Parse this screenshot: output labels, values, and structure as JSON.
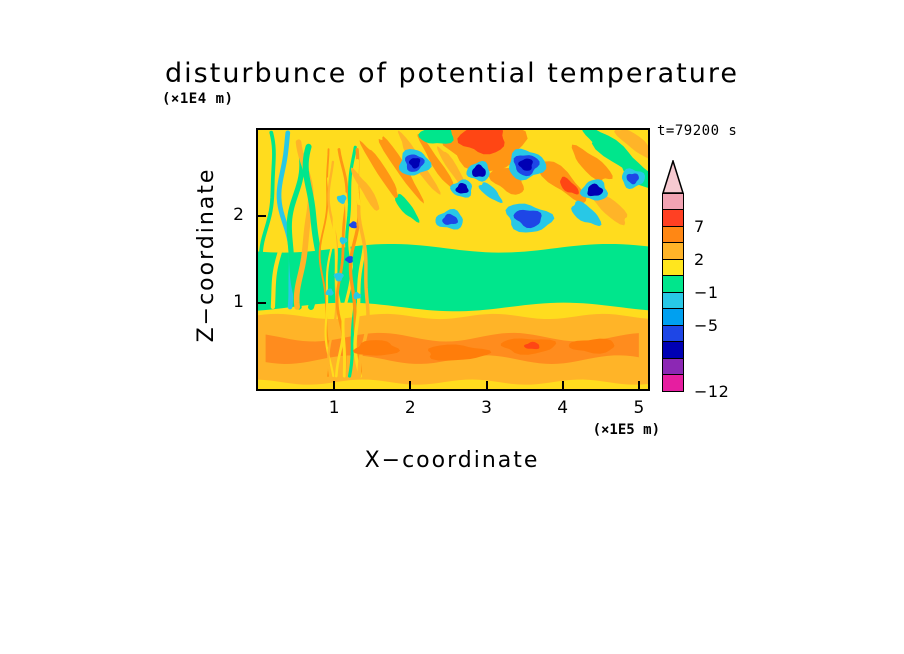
{
  "page": {
    "background": "#FFFFFF"
  },
  "chart_data": {
    "type": "heatmap",
    "subtype": "filled-contour",
    "title": "disturbunce of potential temperature",
    "xlabel": "X−coordinate",
    "ylabel": "Z−coordinate",
    "x_unit": "(×1E5 m)",
    "z_unit": "(×1E4 m)",
    "time_label": "t=79200 s",
    "xlim": [
      0,
      5.12
    ],
    "zlim": [
      0,
      3
    ],
    "grid": false,
    "x_ticks": [
      "1",
      "2",
      "3",
      "4",
      "5"
    ],
    "x_tick_values": [
      1,
      2,
      3,
      4,
      5
    ],
    "z_ticks": [
      "1",
      "2"
    ],
    "z_tick_values": [
      1,
      2
    ],
    "colorbar": {
      "orientation": "vertical",
      "position": "right",
      "arrow_color": "#F6C9D0",
      "segment_colors": [
        "#F2A3B3",
        "#FF4023",
        "#FF8714",
        "#FFB428",
        "#FFE61E",
        "#00E68C",
        "#28C8E6",
        "#00A0F0",
        "#1E46E6",
        "#0000B4",
        "#8C28B4",
        "#E61EA0"
      ],
      "tick_labels": [
        "7",
        "2",
        "−1",
        "−5",
        "−12"
      ],
      "tick_after_segment": [
        2,
        4,
        6,
        8,
        12
      ]
    },
    "field": {
      "description": "Vertical cross-section of potential temperature disturbance: near-zero (green) band at mid levels, warm (amber/orange) layer near the surface, turbulent wave-breaking column of fine vertical filaments near x=1, and a busy upper region with warm (orange/red) diagonal phase lines and cold (cyan/blue) cores.",
      "base": "#FFDC1E",
      "bands": [
        {
          "z0": 0.08,
          "z1": 0.84,
          "x0": 0.0,
          "x1": 5.12,
          "color": "#FFB428",
          "wave": 0.03,
          "f": 2.2,
          "p": 0.5
        },
        {
          "z0": 0.34,
          "z1": 0.6,
          "x0": 0.1,
          "x1": 5.0,
          "color": "#FF8C1E",
          "wave": 0.05,
          "f": 1.8,
          "p": 2.1
        },
        {
          "z0": 0.95,
          "z1": 1.63,
          "x0": 0.0,
          "x1": 5.12,
          "color": "#00E68C",
          "wave": 0.05,
          "f": 1.1,
          "p": 4.0
        }
      ],
      "stripe_groups": [
        {
          "x0": 0.08,
          "x1": 0.78,
          "z0": 0.95,
          "z1": 2.97,
          "count": 6,
          "width": 0.07,
          "sway": 0.08,
          "colors": [
            "#00E68C",
            "#FFDC1E",
            "#28C8E6",
            "#00E68C",
            "#FFB428",
            "#00E68C"
          ]
        },
        {
          "x0": 0.85,
          "x1": 1.42,
          "z0": 0.15,
          "z1": 2.8,
          "count": 10,
          "width": 0.035,
          "sway": 0.05,
          "colors": [
            "#FF9614",
            "#FFDC1E",
            "#FFB428",
            "#FFDC1E",
            "#FF9614",
            "#FFDC1E",
            "#00E68C",
            "#FF9614",
            "#FFDC1E",
            "#FFB428"
          ]
        }
      ],
      "blobs": [
        {
          "x": 1.62,
          "z": 2.52,
          "rx": 0.45,
          "rz": 0.055,
          "rot": 57,
          "color": "#FF9614"
        },
        {
          "x": 1.86,
          "z": 2.58,
          "rx": 0.5,
          "rz": 0.06,
          "rot": 57,
          "color": "#FF9614"
        },
        {
          "x": 2.1,
          "z": 2.62,
          "rx": 0.48,
          "rz": 0.055,
          "rot": 57,
          "color": "#FFB428"
        },
        {
          "x": 2.34,
          "z": 2.62,
          "rx": 0.42,
          "rz": 0.05,
          "rot": 57,
          "color": "#FF9614"
        },
        {
          "x": 1.42,
          "z": 2.3,
          "rx": 0.33,
          "rz": 0.05,
          "rot": 57,
          "color": "#FFB428"
        },
        {
          "x": 2.56,
          "z": 2.55,
          "rx": 0.35,
          "rz": 0.05,
          "rot": 57,
          "color": "#FFB428"
        },
        {
          "x": 1.95,
          "z": 2.1,
          "rx": 0.22,
          "rz": 0.06,
          "rot": 50,
          "color": "#00E68C"
        },
        {
          "x": 2.98,
          "z": 2.82,
          "rx": 0.52,
          "rz": 0.28,
          "rot": 0,
          "color": "#FF9614"
        },
        {
          "x": 2.96,
          "z": 2.9,
          "rx": 0.3,
          "rz": 0.17,
          "rot": 0,
          "color": "#FF4614"
        },
        {
          "x": 3.28,
          "z": 2.42,
          "rx": 0.24,
          "rz": 0.13,
          "rot": 30,
          "color": "#FF9614"
        },
        {
          "x": 3.98,
          "z": 2.42,
          "rx": 0.4,
          "rz": 0.11,
          "rot": 40,
          "color": "#FF9614"
        },
        {
          "x": 4.08,
          "z": 2.35,
          "rx": 0.15,
          "rz": 0.06,
          "rot": 40,
          "color": "#FF4614"
        },
        {
          "x": 4.38,
          "z": 2.6,
          "rx": 0.32,
          "rz": 0.1,
          "rot": 40,
          "color": "#FF9614"
        },
        {
          "x": 4.62,
          "z": 2.1,
          "rx": 0.3,
          "rz": 0.09,
          "rot": 40,
          "color": "#FFB428"
        },
        {
          "x": 4.95,
          "z": 2.85,
          "rx": 0.3,
          "rz": 0.08,
          "rot": 38,
          "color": "#FFB428"
        },
        {
          "x": 4.72,
          "z": 2.72,
          "rx": 0.45,
          "rz": 0.11,
          "rot": 38,
          "color": "#00E68C"
        },
        {
          "x": 5.0,
          "z": 2.5,
          "rx": 0.38,
          "rz": 0.1,
          "rot": 38,
          "color": "#00E68C"
        },
        {
          "x": 4.5,
          "z": 2.88,
          "rx": 0.3,
          "rz": 0.09,
          "rot": 38,
          "color": "#00E68C"
        },
        {
          "x": 2.35,
          "z": 2.95,
          "rx": 0.22,
          "rz": 0.12,
          "rot": 0,
          "color": "#00E68C"
        },
        {
          "x": 2.05,
          "z": 2.62,
          "rx": 0.2,
          "rz": 0.15,
          "rot": 0,
          "color": "#28C8E6"
        },
        {
          "x": 2.05,
          "z": 2.62,
          "rx": 0.12,
          "rz": 0.1,
          "rot": 0,
          "color": "#1E46E6"
        },
        {
          "x": 2.06,
          "z": 2.62,
          "rx": 0.07,
          "rz": 0.06,
          "rot": 0,
          "color": "#0000B4"
        },
        {
          "x": 2.9,
          "z": 2.52,
          "rx": 0.15,
          "rz": 0.11,
          "rot": 0,
          "color": "#28C8E6"
        },
        {
          "x": 2.9,
          "z": 2.52,
          "rx": 0.09,
          "rz": 0.07,
          "rot": 0,
          "color": "#0000B4"
        },
        {
          "x": 3.52,
          "z": 2.6,
          "rx": 0.24,
          "rz": 0.17,
          "rot": 0,
          "color": "#28C8E6"
        },
        {
          "x": 3.52,
          "z": 2.6,
          "rx": 0.16,
          "rz": 0.12,
          "rot": 0,
          "color": "#1E46E6"
        },
        {
          "x": 3.52,
          "z": 2.6,
          "rx": 0.09,
          "rz": 0.07,
          "rot": 0,
          "color": "#0000B4"
        },
        {
          "x": 4.42,
          "z": 2.3,
          "rx": 0.17,
          "rz": 0.12,
          "rot": 0,
          "color": "#28C8E6"
        },
        {
          "x": 4.42,
          "z": 2.3,
          "rx": 0.1,
          "rz": 0.07,
          "rot": 0,
          "color": "#0000B4"
        },
        {
          "x": 4.92,
          "z": 2.44,
          "rx": 0.15,
          "rz": 0.11,
          "rot": 0,
          "color": "#28C8E6"
        },
        {
          "x": 4.92,
          "z": 2.44,
          "rx": 0.08,
          "rz": 0.06,
          "rot": 0,
          "color": "#1E46E6"
        },
        {
          "x": 2.68,
          "z": 2.32,
          "rx": 0.14,
          "rz": 0.1,
          "rot": 0,
          "color": "#28C8E6"
        },
        {
          "x": 2.68,
          "z": 2.32,
          "rx": 0.08,
          "rz": 0.06,
          "rot": 0,
          "color": "#0000B4"
        },
        {
          "x": 3.05,
          "z": 2.28,
          "rx": 0.18,
          "rz": 0.06,
          "rot": 40,
          "color": "#28C8E6"
        },
        {
          "x": 3.55,
          "z": 1.98,
          "rx": 0.3,
          "rz": 0.16,
          "rot": 10,
          "color": "#28C8E6"
        },
        {
          "x": 3.55,
          "z": 1.98,
          "rx": 0.18,
          "rz": 0.1,
          "rot": 10,
          "color": "#1E46E6"
        },
        {
          "x": 2.52,
          "z": 1.96,
          "rx": 0.18,
          "rz": 0.11,
          "rot": 0,
          "color": "#28C8E6"
        },
        {
          "x": 2.52,
          "z": 1.96,
          "rx": 0.1,
          "rz": 0.06,
          "rot": 0,
          "color": "#1E46E6"
        },
        {
          "x": 4.3,
          "z": 2.03,
          "rx": 0.22,
          "rz": 0.09,
          "rot": 35,
          "color": "#28C8E6"
        },
        {
          "x": 1.06,
          "z": 1.3,
          "rx": 0.06,
          "rz": 0.05,
          "rot": 0,
          "color": "#28C8E6"
        },
        {
          "x": 1.2,
          "z": 1.5,
          "rx": 0.05,
          "rz": 0.04,
          "rot": 0,
          "color": "#1E46E6"
        },
        {
          "x": 0.94,
          "z": 1.12,
          "rx": 0.05,
          "rz": 0.04,
          "rot": 0,
          "color": "#28C8E6"
        },
        {
          "x": 1.3,
          "z": 1.08,
          "rx": 0.05,
          "rz": 0.04,
          "rot": 0,
          "color": "#28C8E6"
        },
        {
          "x": 1.12,
          "z": 1.72,
          "rx": 0.05,
          "rz": 0.04,
          "rot": 0,
          "color": "#28C8E6"
        },
        {
          "x": 1.1,
          "z": 2.2,
          "rx": 0.06,
          "rz": 0.05,
          "rot": 0,
          "color": "#28C8E6"
        },
        {
          "x": 1.25,
          "z": 1.9,
          "rx": 0.05,
          "rz": 0.04,
          "rot": 0,
          "color": "#1E46E6"
        },
        {
          "x": 1.55,
          "z": 0.47,
          "rx": 0.28,
          "rz": 0.09,
          "rot": 0,
          "color": "#FF7D0A"
        },
        {
          "x": 2.6,
          "z": 0.42,
          "rx": 0.4,
          "rz": 0.09,
          "rot": 0,
          "color": "#FF7D0A"
        },
        {
          "x": 3.55,
          "z": 0.5,
          "rx": 0.35,
          "rz": 0.09,
          "rot": 0,
          "color": "#FF7D0A"
        },
        {
          "x": 4.4,
          "z": 0.5,
          "rx": 0.3,
          "rz": 0.08,
          "rot": 0,
          "color": "#FF7D0A"
        },
        {
          "x": 3.6,
          "z": 0.5,
          "rx": 0.1,
          "rz": 0.04,
          "rot": 0,
          "color": "#FF4614"
        }
      ]
    }
  }
}
